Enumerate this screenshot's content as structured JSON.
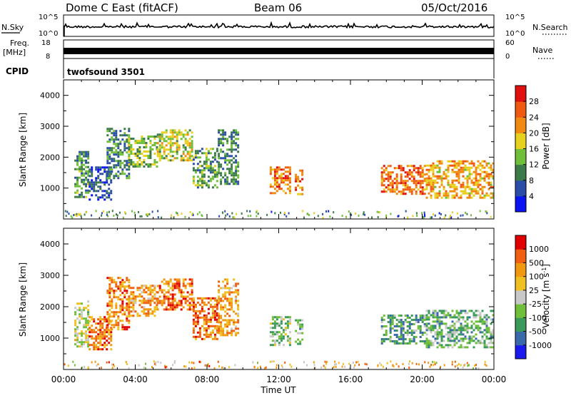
{
  "header": {
    "station": "Dome C East (fitACF)",
    "beam": "Beam 06",
    "date": "05/Oct/2016"
  },
  "summary": {
    "nsky_label": "N.Sky",
    "nsearch_label": "N.Search",
    "log_top": "10^5",
    "log_bottom": "10^0",
    "freq_label_1": "Freq.",
    "freq_label_2": "[MHz]",
    "freq_top": "18",
    "freq_bottom": "8",
    "nave_label": "Nave",
    "nave_top": "60",
    "nave_bottom": "0",
    "cpid_label": "CPID",
    "cpid_value": "twofsound 3501"
  },
  "colors": {
    "power_scale": [
      "#0a14f0",
      "#2a4ea8",
      "#3c7a4a",
      "#6fbf3a",
      "#e8d020",
      "#f08a10",
      "#f05a10",
      "#e01010"
    ],
    "velocity_scale": [
      "#e00000",
      "#f06010",
      "#f09810",
      "#f0c020",
      "#c8c8c8",
      "#6fbf3a",
      "#3a9a5a",
      "#3a6aaa",
      "#1a1aee"
    ]
  },
  "chart_data": [
    {
      "type": "heatmap",
      "panel": "power",
      "ylabel": "Slant Range [km]",
      "ylim": [
        0,
        4500
      ],
      "yticks": [
        "1000",
        "2000",
        "3000",
        "4000"
      ],
      "xlim": [
        0,
        24
      ],
      "colorbar": {
        "label": "Power [dB]",
        "ticks": [
          "4",
          "8",
          "12",
          "16",
          "20",
          "24",
          "28"
        ],
        "range": [
          0,
          30
        ]
      },
      "regions": [
        {
          "t0": 0.6,
          "t1": 1.4,
          "r0": 700,
          "r1": 2200,
          "level": 0.35
        },
        {
          "t0": 1.4,
          "t1": 2.6,
          "r0": 650,
          "r1": 1700,
          "level": 0.2
        },
        {
          "t0": 2.4,
          "t1": 3.6,
          "r0": 1300,
          "r1": 2950,
          "level": 0.3
        },
        {
          "t0": 3.6,
          "t1": 5.2,
          "r0": 1700,
          "r1": 2700,
          "level": 0.45
        },
        {
          "t0": 5.2,
          "t1": 7.2,
          "r0": 1900,
          "r1": 2900,
          "level": 0.5
        },
        {
          "t0": 7.2,
          "t1": 8.6,
          "r0": 1000,
          "r1": 2300,
          "level": 0.35
        },
        {
          "t0": 8.6,
          "t1": 9.7,
          "r0": 1100,
          "r1": 2900,
          "level": 0.3
        },
        {
          "t0": 11.5,
          "t1": 12.6,
          "r0": 800,
          "r1": 1700,
          "level": 0.75
        },
        {
          "t0": 12.9,
          "t1": 13.3,
          "r0": 800,
          "r1": 1600,
          "level": 0.75
        },
        {
          "t0": 17.7,
          "t1": 20.2,
          "r0": 800,
          "r1": 1750,
          "level": 0.75
        },
        {
          "t0": 20.2,
          "t1": 24.0,
          "r0": 700,
          "r1": 1900,
          "level": 0.65
        }
      ],
      "xlabel": "",
      "xticks": []
    },
    {
      "type": "heatmap",
      "panel": "velocity",
      "xlabel": "Time UT",
      "ylabel": "Slant Range [km]",
      "xlim": [
        0,
        24
      ],
      "xticks": [
        "00:00",
        "04:00",
        "08:00",
        "12:00",
        "16:00",
        "20:00",
        "00:00"
      ],
      "ylim": [
        0,
        4500
      ],
      "yticks": [
        "1000",
        "2000",
        "3000",
        "4000"
      ],
      "colorbar": {
        "label": "Velocity [m s^-1]",
        "ticks": [
          "1000",
          "500",
          "100",
          "25",
          "-25",
          "-100",
          "-500",
          "-1000"
        ],
        "range": [
          -1200,
          1200
        ]
      },
      "regions": [
        {
          "t0": 0.6,
          "t1": 1.4,
          "r0": 700,
          "r1": 2200,
          "level": 0.5
        },
        {
          "t0": 1.4,
          "t1": 2.6,
          "r0": 650,
          "r1": 1700,
          "level": 0.22
        },
        {
          "t0": 2.4,
          "t1": 3.6,
          "r0": 1300,
          "r1": 2950,
          "level": 0.25
        },
        {
          "t0": 3.6,
          "t1": 5.2,
          "r0": 1700,
          "r1": 2700,
          "level": 0.3
        },
        {
          "t0": 5.2,
          "t1": 7.2,
          "r0": 1900,
          "r1": 2900,
          "level": 0.22
        },
        {
          "t0": 7.2,
          "t1": 8.6,
          "r0": 1000,
          "r1": 2300,
          "level": 0.22
        },
        {
          "t0": 8.6,
          "t1": 9.7,
          "r0": 1100,
          "r1": 2900,
          "level": 0.3
        },
        {
          "t0": 11.5,
          "t1": 12.6,
          "r0": 800,
          "r1": 1700,
          "level": 0.6
        },
        {
          "t0": 12.9,
          "t1": 13.3,
          "r0": 800,
          "r1": 1600,
          "level": 0.7
        },
        {
          "t0": 17.7,
          "t1": 20.2,
          "r0": 800,
          "r1": 1750,
          "level": 0.7
        },
        {
          "t0": 20.2,
          "t1": 24.0,
          "r0": 700,
          "r1": 1900,
          "level": 0.65
        }
      ]
    }
  ]
}
